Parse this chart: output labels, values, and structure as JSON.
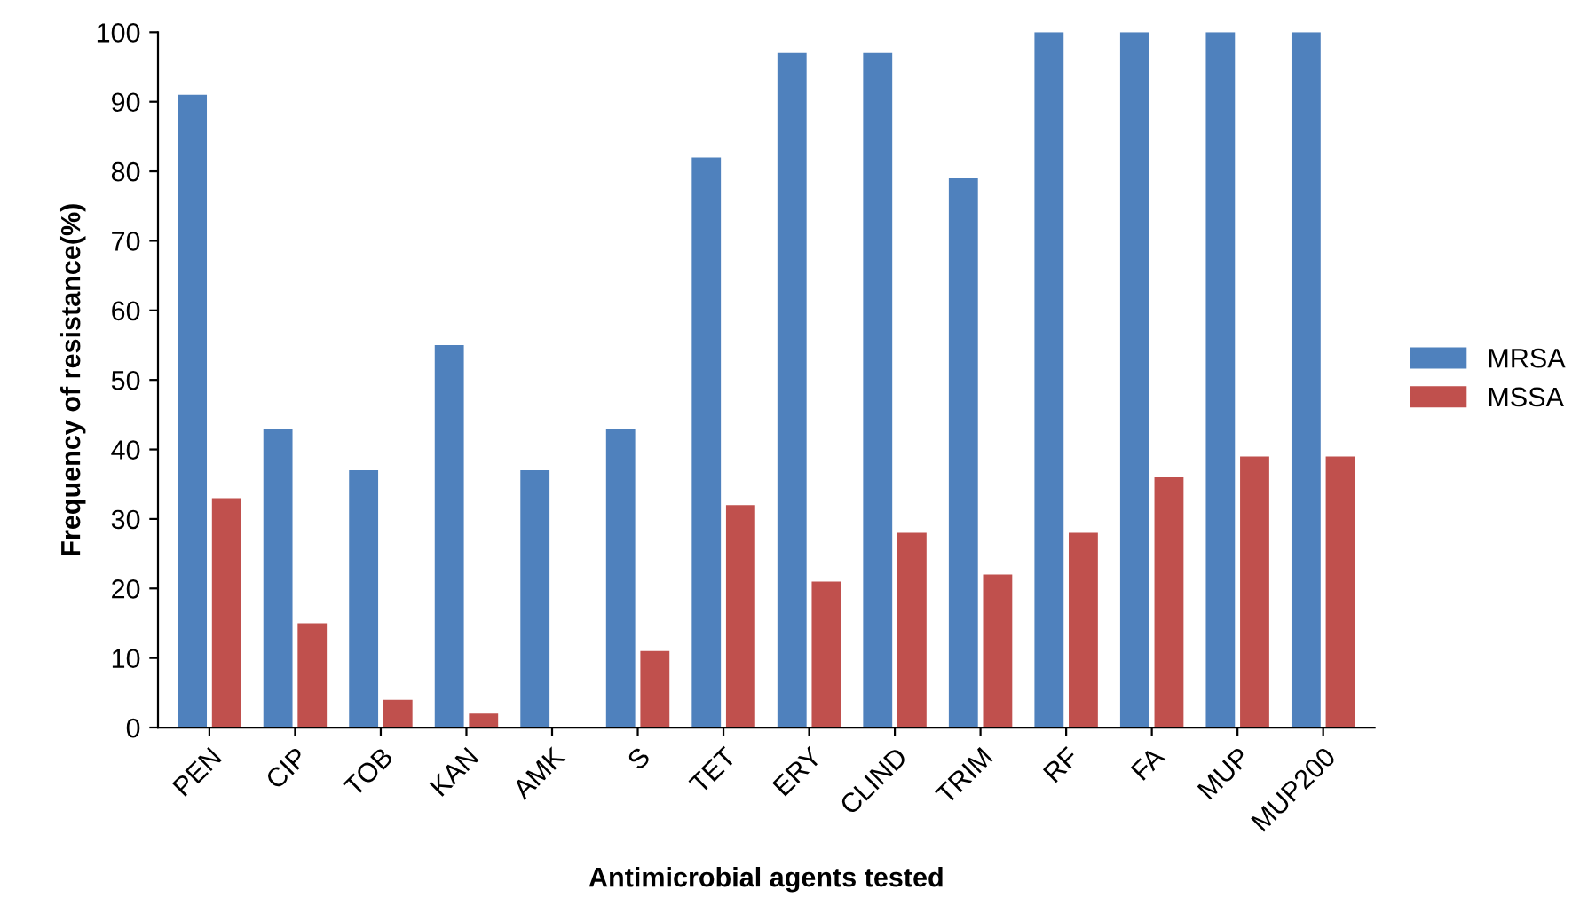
{
  "chart_data": {
    "type": "bar",
    "xlabel": "Antimicrobial agents tested",
    "ylabel": "Frequency of resistance(%)",
    "categories": [
      "PEN",
      "CIP",
      "TOB",
      "KAN",
      "AMK",
      "S",
      "TET",
      "ERY",
      "CLIND",
      "TRIM",
      "RF",
      "FA",
      "MUP",
      "MUP200"
    ],
    "series": [
      {
        "name": "MRSA",
        "color": "#4f81bd",
        "values": [
          91,
          43,
          37,
          55,
          37,
          43,
          82,
          97,
          97,
          79,
          100,
          100,
          100,
          100
        ]
      },
      {
        "name": "MSSA",
        "color": "#c0504d",
        "values": [
          33,
          15,
          4,
          2,
          0,
          11,
          32,
          21,
          28,
          22,
          28,
          36,
          39,
          39
        ]
      }
    ],
    "ylim": [
      0,
      100
    ],
    "yticks": [
      0,
      10,
      20,
      30,
      40,
      50,
      60,
      70,
      80,
      90,
      100
    ],
    "grid": false,
    "legend": "right"
  }
}
